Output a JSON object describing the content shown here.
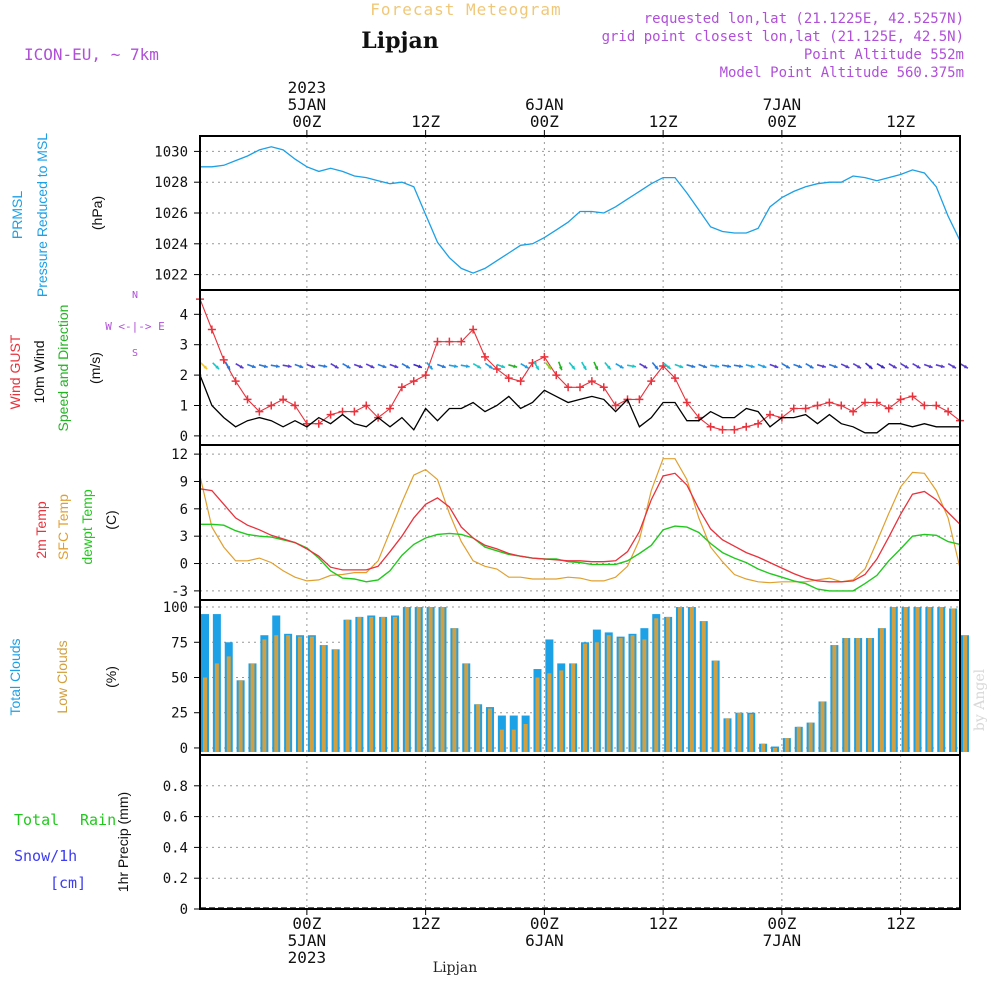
{
  "header": {
    "title": "Forecast Meteogram",
    "location": "Lipjan",
    "model": "ICON-EU, ~ 7km",
    "requested": "requested lon,lat (21.1225E, 42.5257N)",
    "grid_point": "grid point closest lon,lat (21.125E, 42.5N)",
    "point_altitude": "Point Altitude 552m",
    "model_altitude": "Model Point Altitude 560.375m",
    "footer_location": "Lipjan",
    "credit": "by Angel"
  },
  "colors": {
    "pressure": "#1ca0e6",
    "gust": "#e8323c",
    "wind": "#000000",
    "direction_green": "#22b422",
    "t2m": "#e8323c",
    "sfc": "#e0a030",
    "dewpt": "#22c81e",
    "total_clouds": "#1ca0e6",
    "low_clouds": "#d2a040",
    "rain": "#22c81e",
    "snow": "#3c3cf0",
    "meta": "#b050d8",
    "title_faint": "#f0c878"
  },
  "time_axis": {
    "start_hour": 0,
    "end_hour": 64,
    "top_ticks": [
      {
        "hour": 9,
        "lines": [
          "2023",
          "5JAN",
          "00Z"
        ]
      },
      {
        "hour": 19,
        "lines": [
          "12Z"
        ]
      },
      {
        "hour": 29,
        "lines": [
          "6JAN",
          "00Z"
        ]
      },
      {
        "hour": 39,
        "lines": [
          "12Z"
        ]
      },
      {
        "hour": 49,
        "lines": [
          "7JAN",
          "00Z"
        ]
      },
      {
        "hour": 59,
        "lines": [
          "12Z"
        ]
      }
    ],
    "bottom_ticks": [
      {
        "hour": 9,
        "lines": [
          "00Z",
          "5JAN",
          "2023"
        ]
      },
      {
        "hour": 19,
        "lines": [
          "12Z"
        ]
      },
      {
        "hour": 29,
        "lines": [
          "00Z",
          "6JAN"
        ]
      },
      {
        "hour": 39,
        "lines": [
          "12Z"
        ]
      },
      {
        "hour": 49,
        "lines": [
          "00Z",
          "7JAN"
        ]
      },
      {
        "hour": 59,
        "lines": [
          "12Z"
        ]
      }
    ]
  },
  "chart_data": [
    {
      "id": "pressure",
      "type": "line",
      "title": "PRMSL Pressure Reduced to MSL",
      "ylabel_lines": [
        "PRMSL",
        "Pressure Reduced to MSL"
      ],
      "unit": "(hPa)",
      "ylim": [
        1021,
        1031
      ],
      "yticks": [
        1022,
        1024,
        1026,
        1028,
        1030
      ],
      "series": [
        {
          "name": "PRMSL",
          "x": [
            0,
            1,
            2,
            3,
            4,
            5,
            6,
            7,
            8,
            9,
            10,
            11,
            12,
            13,
            14,
            15,
            16,
            17,
            18,
            19,
            20,
            21,
            22,
            23,
            24,
            25,
            26,
            27,
            28,
            29,
            30,
            31,
            32,
            33,
            34,
            35,
            36,
            37,
            38,
            39,
            40,
            41,
            42,
            43,
            44,
            45,
            46,
            47,
            48,
            49,
            50,
            51,
            52,
            53,
            54,
            55,
            56,
            57,
            58,
            59,
            60,
            61,
            62,
            63,
            64
          ],
          "values": [
            1029.0,
            1029.0,
            1029.1,
            1029.4,
            1029.7,
            1030.1,
            1030.3,
            1030.1,
            1029.5,
            1029.0,
            1028.7,
            1028.9,
            1028.7,
            1028.4,
            1028.3,
            1028.1,
            1027.9,
            1028.0,
            1027.7,
            1025.9,
            1024.1,
            1023.1,
            1022.4,
            1022.1,
            1022.4,
            1022.9,
            1023.4,
            1023.9,
            1024.0,
            1024.4,
            1024.9,
            1025.4,
            1026.1,
            1026.1,
            1026.0,
            1026.4,
            1026.9,
            1027.4,
            1027.9,
            1028.3,
            1028.3,
            1027.3,
            1026.2,
            1025.1,
            1024.8,
            1024.7,
            1024.7,
            1025.0,
            1026.4,
            1027.0,
            1027.4,
            1027.7,
            1027.9,
            1028.0,
            1028.0,
            1028.4,
            1028.3,
            1028.1,
            1028.3,
            1028.5,
            1028.8,
            1028.6,
            1027.7,
            1025.8,
            1024.2
          ]
        }
      ]
    },
    {
      "id": "wind",
      "type": "line",
      "title": "Wind GUST / 10m Wind Speed and Direction",
      "ylabel_lines": [
        "Wind GUST",
        "10m Wind",
        "Speed and Direction"
      ],
      "unit": "(m/s)",
      "compass": [
        "N",
        "W <-|-> E",
        "S"
      ],
      "ylim": [
        -0.3,
        4.8
      ],
      "yticks": [
        0,
        1,
        2,
        3,
        4
      ],
      "series": [
        {
          "name": "Wind GUST",
          "values": [
            4.5,
            3.5,
            2.5,
            1.8,
            1.2,
            0.8,
            1.0,
            1.2,
            1.0,
            0.4,
            0.4,
            0.7,
            0.8,
            0.8,
            1.0,
            0.6,
            0.9,
            1.6,
            1.8,
            2.0,
            3.1,
            3.1,
            3.1,
            3.5,
            2.6,
            2.2,
            1.9,
            1.8,
            2.4,
            2.6,
            2.0,
            1.6,
            1.6,
            1.8,
            1.6,
            1.0,
            1.2,
            1.2,
            1.8,
            2.3,
            1.9,
            1.1,
            0.6,
            0.3,
            0.2,
            0.2,
            0.3,
            0.4,
            0.7,
            0.6,
            0.9,
            0.9,
            1.0,
            1.1,
            1.0,
            0.8,
            1.1,
            1.1,
            0.9,
            1.2,
            1.3,
            1.0,
            1.0,
            0.8,
            0.5
          ]
        },
        {
          "name": "10m Wind",
          "values": [
            2.0,
            1.0,
            0.6,
            0.3,
            0.5,
            0.6,
            0.5,
            0.3,
            0.5,
            0.3,
            0.6,
            0.4,
            0.7,
            0.4,
            0.3,
            0.6,
            0.3,
            0.6,
            0.2,
            0.9,
            0.5,
            0.9,
            0.9,
            1.1,
            0.8,
            1.0,
            1.3,
            0.9,
            1.1,
            1.5,
            1.3,
            1.1,
            1.2,
            1.3,
            1.2,
            0.8,
            1.2,
            0.3,
            0.6,
            1.1,
            1.1,
            0.5,
            0.5,
            0.8,
            0.6,
            0.6,
            0.9,
            0.8,
            0.3,
            0.6,
            0.6,
            0.7,
            0.4,
            0.7,
            0.4,
            0.3,
            0.1,
            0.1,
            0.4,
            0.4,
            0.3,
            0.4,
            0.3,
            0.3,
            0.3
          ]
        }
      ],
      "directions_deg": [
        315,
        315,
        330,
        300,
        290,
        285,
        280,
        280,
        290,
        290,
        280,
        300,
        300,
        290,
        295,
        290,
        290,
        300,
        290,
        320,
        290,
        280,
        280,
        300,
        305,
        290,
        285,
        300,
        330,
        320,
        340,
        320,
        330,
        335,
        320,
        300,
        280,
        300,
        320,
        310,
        290,
        285,
        290,
        280,
        280,
        280,
        285,
        290,
        290,
        300,
        290,
        300,
        285,
        290,
        295,
        300,
        310,
        300,
        300,
        300,
        300,
        290,
        285,
        300,
        300
      ]
    },
    {
      "id": "temperature",
      "type": "line",
      "title": "2m Temp / SFC Temp / dewpt Temp",
      "ylabel_lines": [
        "2m Temp",
        "SFC Temp",
        "dewpt Temp"
      ],
      "unit": "(C)",
      "ylim": [
        -4,
        13
      ],
      "yticks": [
        -3,
        0,
        3,
        6,
        9,
        12
      ],
      "series": [
        {
          "name": "2m Temp",
          "values": [
            8.2,
            8.0,
            6.5,
            5.0,
            4.2,
            3.7,
            3.1,
            2.7,
            2.3,
            1.6,
            0.8,
            -0.4,
            -0.7,
            -0.7,
            -0.7,
            -0.3,
            1.3,
            3.0,
            5.0,
            6.5,
            7.2,
            6.2,
            4.0,
            2.8,
            2.0,
            1.6,
            1.1,
            0.8,
            0.6,
            0.5,
            0.4,
            0.3,
            0.3,
            0.2,
            0.2,
            0.3,
            1.3,
            3.5,
            7.0,
            9.6,
            9.9,
            8.6,
            6.0,
            3.8,
            2.6,
            1.9,
            1.2,
            0.7,
            0.1,
            -0.5,
            -1.1,
            -1.6,
            -1.9,
            -2.0,
            -2.0,
            -1.9,
            -1.2,
            0.5,
            2.9,
            5.4,
            7.6,
            7.9,
            7.0,
            5.6,
            4.3
          ]
        },
        {
          "name": "SFC Temp",
          "values": [
            9.6,
            4.0,
            1.8,
            0.3,
            0.3,
            0.6,
            0.1,
            -0.8,
            -1.5,
            -1.9,
            -1.8,
            -1.3,
            -1.2,
            -1.0,
            -1.0,
            0.3,
            3.5,
            6.7,
            9.7,
            10.3,
            9.2,
            5.5,
            2.4,
            0.3,
            -0.3,
            -0.6,
            -1.5,
            -1.5,
            -1.7,
            -1.7,
            -1.7,
            -1.5,
            -1.6,
            -1.9,
            -1.9,
            -1.5,
            -0.3,
            2.6,
            8.0,
            11.5,
            11.5,
            9.2,
            5.0,
            1.8,
            0.2,
            -1.2,
            -1.7,
            -2.0,
            -2.1,
            -2.0,
            -2.0,
            -2.0,
            -1.8,
            -1.6,
            -2.0,
            -1.8,
            -0.6,
            2.4,
            5.5,
            8.4,
            10.0,
            9.9,
            8.0,
            5.0,
            -0.5
          ]
        },
        {
          "name": "dewpt Temp",
          "values": [
            4.3,
            4.3,
            4.2,
            3.6,
            3.2,
            3.0,
            2.9,
            2.6,
            2.3,
            1.7,
            0.6,
            -0.8,
            -1.6,
            -1.7,
            -2.0,
            -1.8,
            -0.8,
            0.9,
            2.1,
            2.8,
            3.2,
            3.3,
            3.2,
            2.8,
            1.8,
            1.4,
            1.0,
            0.8,
            0.6,
            0.5,
            0.5,
            0.2,
            0.1,
            -0.1,
            -0.1,
            -0.1,
            0.3,
            1.1,
            2.0,
            3.7,
            4.1,
            4.0,
            3.4,
            2.2,
            1.2,
            0.6,
            0.1,
            -0.6,
            -1.1,
            -1.5,
            -1.9,
            -2.2,
            -2.8,
            -3.0,
            -3.0,
            -3.0,
            -2.2,
            -1.3,
            0.3,
            1.6,
            3.0,
            3.2,
            3.1,
            2.4,
            2.1
          ]
        }
      ]
    },
    {
      "id": "clouds",
      "type": "bar",
      "title": "Total Clouds / Low Clouds",
      "ylabel_lines": [
        "Total Clouds",
        "Low Clouds"
      ],
      "unit": "(%)",
      "ylim": [
        -5,
        105
      ],
      "yticks": [
        0,
        25,
        50,
        75,
        100
      ],
      "series": [
        {
          "name": "Total Clouds",
          "values": [
            95,
            95,
            75,
            48,
            60,
            80,
            94,
            81,
            80,
            80,
            73,
            70,
            91,
            93,
            94,
            93,
            94,
            100,
            100,
            100,
            100,
            85,
            60,
            31,
            29,
            23,
            23,
            23,
            56,
            77,
            60,
            60,
            75,
            84,
            82,
            79,
            81,
            85,
            95,
            93,
            100,
            100,
            90,
            62,
            21,
            25,
            25,
            3,
            1,
            7,
            15,
            18,
            33,
            73,
            78,
            78,
            78,
            85,
            100,
            100,
            100,
            100,
            100,
            99,
            80
          ]
        },
        {
          "name": "Low Clouds",
          "values": [
            50,
            60,
            65,
            48,
            60,
            77,
            80,
            80,
            79,
            79,
            73,
            70,
            91,
            93,
            93,
            93,
            93,
            100,
            100,
            100,
            100,
            85,
            60,
            31,
            28,
            13,
            13,
            17,
            50,
            53,
            55,
            60,
            74,
            75,
            80,
            78,
            80,
            77,
            92,
            93,
            100,
            100,
            90,
            62,
            21,
            25,
            24,
            3,
            0,
            7,
            15,
            18,
            33,
            73,
            78,
            78,
            78,
            85,
            100,
            100,
            100,
            100,
            100,
            99,
            80
          ]
        }
      ]
    },
    {
      "id": "precip",
      "type": "bar",
      "title": "1hr Precip (mm)",
      "ylabel_lines": [
        "1hr Precip (mm)"
      ],
      "legend": {
        "total": "Total",
        "rain": "Rain",
        "snow": "Snow/1h",
        "snow_unit": "[cm]"
      },
      "ylim": [
        0,
        1.0
      ],
      "yticks": [
        0,
        0.2,
        0.4,
        0.6,
        0.8
      ],
      "series": [
        {
          "name": "Rain",
          "values": []
        },
        {
          "name": "Snow/1h",
          "values": []
        }
      ]
    }
  ]
}
